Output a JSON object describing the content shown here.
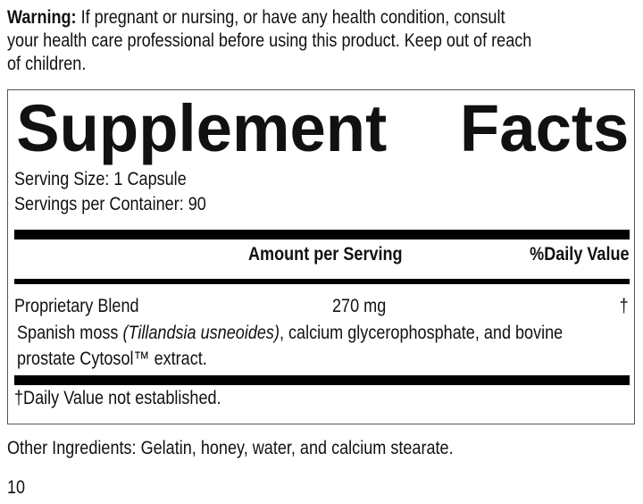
{
  "warning": {
    "label": "Warning:",
    "line1": " If pregnant or nursing, or have any health condition, consult",
    "line2": "your health care professional before using this product. Keep out of reach",
    "line3": "of children."
  },
  "facts": {
    "title_word1": "Supplement",
    "title_word2": "Facts",
    "serving_size": "Serving Size: 1 Capsule",
    "servings_per_container": "Servings per Container: 90",
    "col_amount": "Amount per Serving",
    "col_dv": "%Daily Value",
    "rows": [
      {
        "name": "Proprietary Blend",
        "amount": "270 mg",
        "dv": "†"
      }
    ],
    "blend_line1_a": "Spanish moss ",
    "blend_line1_italic": "(Tillandsia usneoides)",
    "blend_line1_b": ", calcium glycerophosphate, and bovine",
    "blend_line2": "prostate Cytosol™ extract.",
    "footnote": "†Daily Value not established."
  },
  "other_ingredients": "Other Ingredients: Gelatin, honey, water, and calcium stearate.",
  "page_number": "10"
}
